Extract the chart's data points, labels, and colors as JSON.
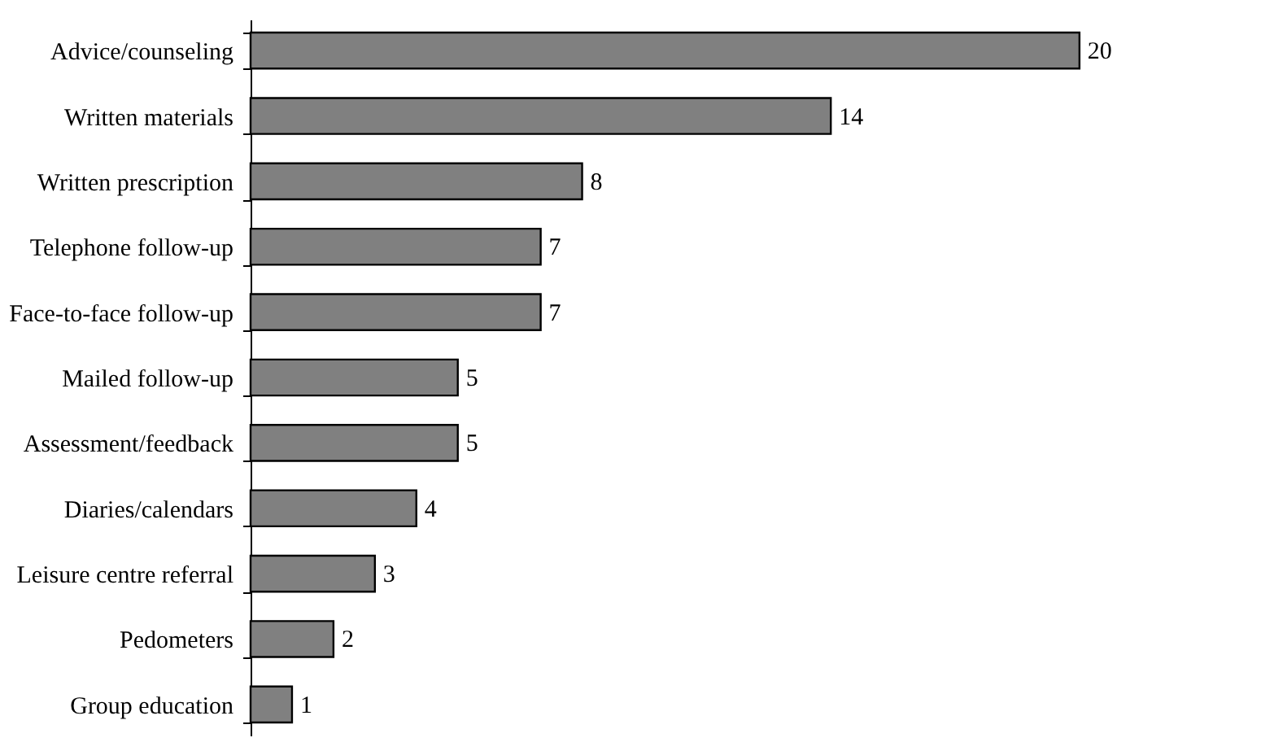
{
  "chart_data": {
    "type": "bar",
    "orientation": "horizontal",
    "categories": [
      "Advice/counseling",
      "Written materials",
      "Written prescription",
      "Telephone follow-up",
      "Face-to-face follow-up",
      "Mailed follow-up",
      "Assessment/feedback",
      "Diaries/calendars",
      "Leisure centre referral",
      "Pedometers",
      "Group education"
    ],
    "values": [
      20,
      14,
      8,
      7,
      7,
      5,
      5,
      4,
      3,
      2,
      1
    ],
    "color": "#808080",
    "data_labels": true
  }
}
